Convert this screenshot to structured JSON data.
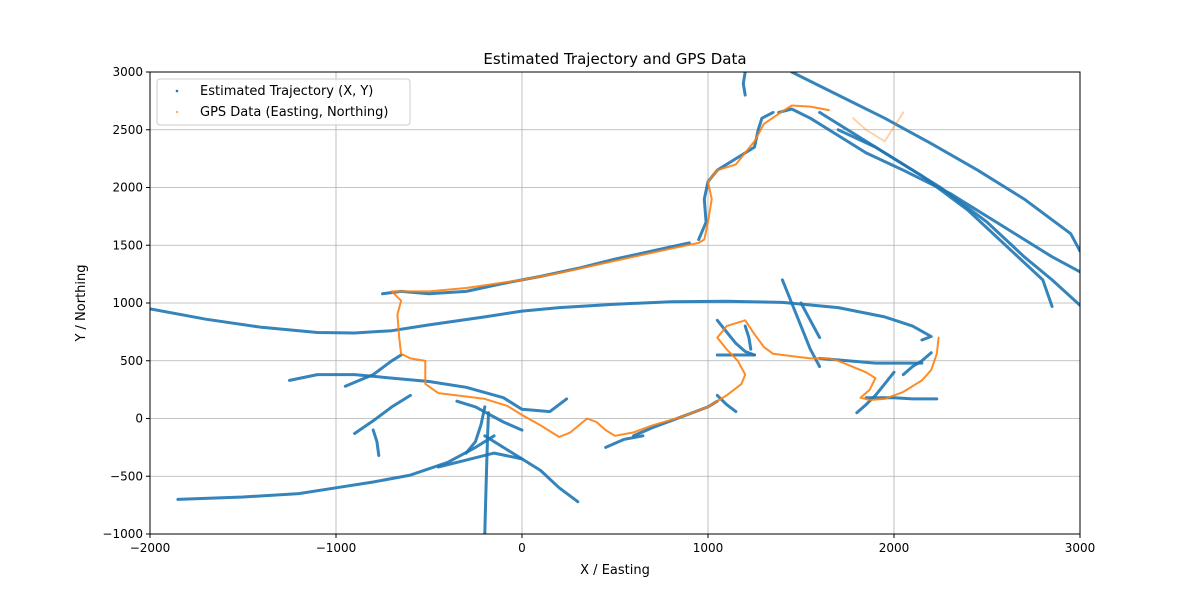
{
  "chart_data": {
    "type": "scatter",
    "title": "Estimated Trajectory and GPS Data",
    "xlabel": "X / Easting",
    "ylabel": "Y / Northing",
    "xlim": [
      -2000,
      3000
    ],
    "ylim": [
      -1000,
      3000
    ],
    "xticks": [
      -2000,
      -1000,
      0,
      1000,
      2000,
      3000
    ],
    "yticks": [
      -1000,
      -500,
      0,
      500,
      1000,
      1500,
      2000,
      2500,
      3000
    ],
    "grid": true,
    "legend_position": "top-left",
    "colors": {
      "estimated": "#1f77b4",
      "gps": "#ff7f0e",
      "grid": "#b0b0b0"
    },
    "series": [
      {
        "name": "Estimated Trajectory (X, Y)",
        "color": "#1f77b4",
        "segments": [
          [
            [
              -2000,
              950
            ],
            [
              -1700,
              860
            ],
            [
              -1400,
              790
            ],
            [
              -1100,
              745
            ],
            [
              -900,
              740
            ],
            [
              -700,
              760
            ],
            [
              -500,
              810
            ],
            [
              -200,
              880
            ],
            [
              0,
              930
            ],
            [
              200,
              960
            ],
            [
              500,
              990
            ],
            [
              800,
              1010
            ],
            [
              1100,
              1015
            ],
            [
              1400,
              1005
            ],
            [
              1700,
              960
            ],
            [
              1950,
              880
            ],
            [
              2100,
              800
            ],
            [
              2200,
              710
            ],
            [
              2150,
              680
            ]
          ],
          [
            [
              -1850,
              -700
            ],
            [
              -1500,
              -680
            ],
            [
              -1200,
              -650
            ],
            [
              -1000,
              -600
            ],
            [
              -800,
              -550
            ],
            [
              -600,
              -490
            ],
            [
              -400,
              -380
            ],
            [
              -250,
              -250
            ],
            [
              -150,
              -150
            ]
          ],
          [
            [
              -1250,
              330
            ],
            [
              -1100,
              380
            ],
            [
              -900,
              380
            ],
            [
              -700,
              350
            ],
            [
              -500,
              320
            ],
            [
              -300,
              270
            ],
            [
              -100,
              180
            ],
            [
              0,
              80
            ],
            [
              150,
              60
            ],
            [
              240,
              170
            ]
          ],
          [
            [
              -200,
              -1000
            ],
            [
              -195,
              -700
            ],
            [
              -190,
              -400
            ],
            [
              -185,
              -150
            ],
            [
              -180,
              50
            ]
          ],
          [
            [
              -950,
              280
            ],
            [
              -800,
              380
            ],
            [
              -700,
              500
            ],
            [
              -650,
              550
            ]
          ],
          [
            [
              -900,
              -130
            ],
            [
              -800,
              -20
            ],
            [
              -700,
              100
            ],
            [
              -600,
              200
            ]
          ],
          [
            [
              -800,
              -100
            ],
            [
              -780,
              -200
            ],
            [
              -770,
              -320
            ]
          ],
          [
            [
              -450,
              -420
            ],
            [
              -300,
              -360
            ],
            [
              -150,
              -300
            ],
            [
              0,
              -350
            ]
          ],
          [
            [
              -350,
              150
            ],
            [
              -250,
              100
            ],
            [
              -100,
              -30
            ],
            [
              0,
              -100
            ]
          ],
          [
            [
              -200,
              -150
            ],
            [
              -100,
              -250
            ],
            [
              0,
              -350
            ],
            [
              100,
              -450
            ],
            [
              200,
              -600
            ],
            [
              300,
              -720
            ]
          ],
          [
            [
              -300,
              -300
            ],
            [
              -250,
              -200
            ],
            [
              -220,
              -50
            ],
            [
              -200,
              100
            ]
          ],
          [
            [
              -750,
              1080
            ],
            [
              -650,
              1100
            ],
            [
              -500,
              1080
            ],
            [
              -300,
              1100
            ],
            [
              -100,
              1170
            ],
            [
              100,
              1230
            ],
            [
              300,
              1300
            ],
            [
              500,
              1380
            ],
            [
              700,
              1450
            ],
            [
              900,
              1520
            ]
          ],
          [
            [
              950,
              1550
            ],
            [
              990,
              1700
            ],
            [
              980,
              1900
            ],
            [
              1000,
              2050
            ],
            [
              1050,
              2150
            ],
            [
              1150,
              2250
            ],
            [
              1250,
              2350
            ],
            [
              1270,
              2500
            ],
            [
              1290,
              2600
            ],
            [
              1350,
              2650
            ]
          ],
          [
            [
              1200,
              2800
            ],
            [
              1190,
              2900
            ],
            [
              1200,
              3000
            ]
          ],
          [
            [
              1380,
              2650
            ],
            [
              1450,
              2680
            ],
            [
              1550,
              2600
            ],
            [
              1700,
              2450
            ],
            [
              1850,
              2300
            ],
            [
              2050,
              2150
            ],
            [
              2300,
              1950
            ],
            [
              2550,
              1700
            ],
            [
              2850,
              1400
            ],
            [
              3000,
              1270
            ]
          ],
          [
            [
              1450,
              3000
            ],
            [
              1700,
              2800
            ],
            [
              1950,
              2600
            ],
            [
              2200,
              2380
            ],
            [
              2450,
              2150
            ],
            [
              2700,
              1900
            ],
            [
              2950,
              1600
            ],
            [
              3000,
              1450
            ]
          ],
          [
            [
              1600,
              2650
            ],
            [
              1800,
              2450
            ],
            [
              2000,
              2250
            ],
            [
              2250,
              2000
            ],
            [
              2500,
              1700
            ],
            [
              2700,
              1400
            ],
            [
              2850,
              1200
            ],
            [
              3000,
              980
            ]
          ],
          [
            [
              1700,
              2500
            ],
            [
              1900,
              2350
            ],
            [
              2150,
              2100
            ],
            [
              2400,
              1800
            ],
            [
              2600,
              1500
            ],
            [
              2800,
              1200
            ],
            [
              2850,
              970
            ]
          ],
          [
            [
              1050,
              850
            ],
            [
              1100,
              750
            ],
            [
              1150,
              650
            ],
            [
              1200,
              580
            ],
            [
              1250,
              550
            ]
          ],
          [
            [
              1050,
              550
            ],
            [
              1150,
              550
            ],
            [
              1250,
              550
            ]
          ],
          [
            [
              1200,
              800
            ],
            [
              1220,
              700
            ],
            [
              1230,
              600
            ]
          ],
          [
            [
              1400,
              1200
            ],
            [
              1450,
              1000
            ],
            [
              1500,
              800
            ],
            [
              1550,
              600
            ],
            [
              1600,
              450
            ]
          ],
          [
            [
              1500,
              1000
            ],
            [
              1550,
              850
            ],
            [
              1600,
              700
            ]
          ],
          [
            [
              1600,
              520
            ],
            [
              1750,
              500
            ],
            [
              1900,
              480
            ],
            [
              2050,
              480
            ],
            [
              2150,
              480
            ]
          ],
          [
            [
              1800,
              50
            ],
            [
              1850,
              120
            ],
            [
              1900,
              200
            ],
            [
              1950,
              300
            ],
            [
              2000,
              400
            ]
          ],
          [
            [
              1850,
              180
            ],
            [
              2000,
              180
            ],
            [
              2100,
              170
            ],
            [
              2230,
              170
            ]
          ],
          [
            [
              2050,
              380
            ],
            [
              2100,
              450
            ],
            [
              2150,
              500
            ],
            [
              2200,
              570
            ]
          ],
          [
            [
              600,
              -150
            ],
            [
              700,
              -80
            ],
            [
              800,
              -20
            ],
            [
              900,
              40
            ],
            [
              1000,
              100
            ],
            [
              1050,
              150
            ]
          ],
          [
            [
              450,
              -250
            ],
            [
              550,
              -180
            ],
            [
              650,
              -150
            ]
          ],
          [
            [
              1050,
              200
            ],
            [
              1100,
              120
            ],
            [
              1150,
              60
            ]
          ]
        ]
      },
      {
        "name": "GPS Data (Easting, Northing)",
        "color": "#ff7f0e",
        "segments": [
          [
            [
              -700,
              1100
            ],
            [
              -650,
              1020
            ],
            [
              -670,
              900
            ],
            [
              -660,
              700
            ],
            [
              -650,
              560
            ],
            [
              -600,
              520
            ],
            [
              -560,
              510
            ],
            [
              -520,
              500
            ],
            [
              -520,
              400
            ],
            [
              -520,
              300
            ],
            [
              -450,
              220
            ],
            [
              -350,
              200
            ],
            [
              -200,
              170
            ],
            [
              -80,
              110
            ],
            [
              0,
              30
            ],
            [
              100,
              -60
            ],
            [
              200,
              -160
            ],
            [
              260,
              -120
            ],
            [
              350,
              0
            ],
            [
              400,
              -30
            ],
            [
              450,
              -100
            ],
            [
              500,
              -150
            ],
            [
              600,
              -120
            ],
            [
              700,
              -60
            ],
            [
              850,
              10
            ],
            [
              1000,
              100
            ],
            [
              1100,
              200
            ],
            [
              1180,
              300
            ],
            [
              1200,
              380
            ],
            [
              1160,
              500
            ],
            [
              1100,
              600
            ],
            [
              1050,
              700
            ],
            [
              1100,
              800
            ],
            [
              1200,
              850
            ],
            [
              1250,
              730
            ],
            [
              1300,
              620
            ],
            [
              1350,
              560
            ],
            [
              1450,
              540
            ],
            [
              1550,
              520
            ],
            [
              1650,
              520
            ],
            [
              1700,
              500
            ],
            [
              1850,
              400
            ],
            [
              1900,
              350
            ],
            [
              1870,
              250
            ],
            [
              1820,
              180
            ],
            [
              1870,
              160
            ],
            [
              1950,
              170
            ],
            [
              2050,
              230
            ],
            [
              2150,
              330
            ],
            [
              2200,
              420
            ],
            [
              2230,
              560
            ],
            [
              2240,
              700
            ]
          ],
          [
            [
              -700,
              1100
            ],
            [
              -500,
              1100
            ],
            [
              -300,
              1130
            ],
            [
              0,
              1200
            ],
            [
              200,
              1260
            ],
            [
              400,
              1330
            ],
            [
              600,
              1400
            ],
            [
              800,
              1470
            ],
            [
              950,
              1520
            ],
            [
              980,
              1550
            ],
            [
              1000,
              1700
            ],
            [
              1020,
              1900
            ],
            [
              1000,
              2050
            ],
            [
              1050,
              2150
            ],
            [
              1150,
              2200
            ],
            [
              1250,
              2400
            ],
            [
              1300,
              2550
            ],
            [
              1400,
              2660
            ],
            [
              1450,
              2710
            ],
            [
              1550,
              2700
            ],
            [
              1650,
              2670
            ]
          ],
          [
            [
              1780,
              2600
            ],
            [
              1850,
              2500
            ],
            [
              1950,
              2400
            ],
            [
              2050,
              2650
            ]
          ]
        ]
      }
    ]
  }
}
